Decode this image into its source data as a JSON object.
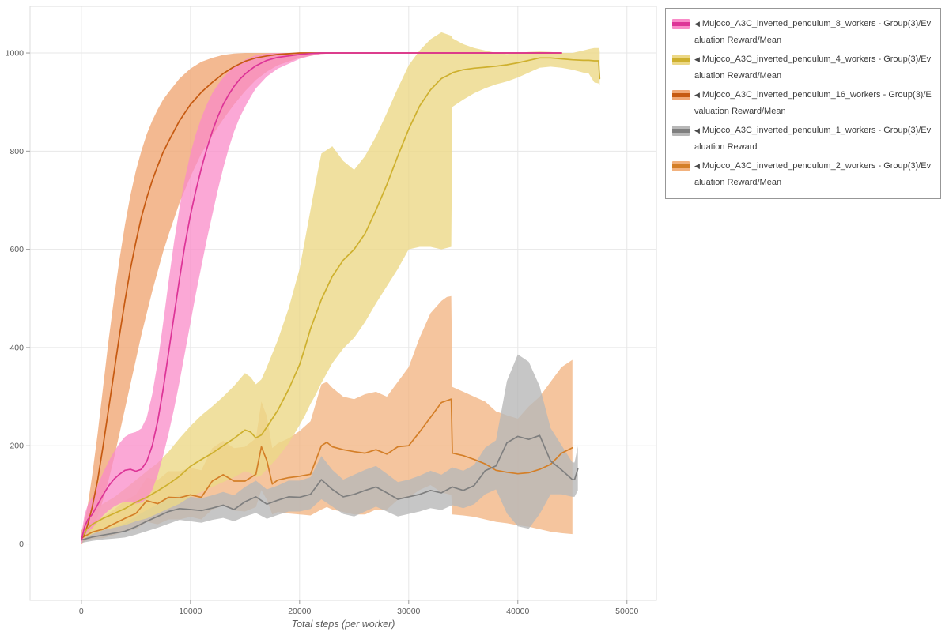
{
  "chart_data": {
    "type": "line",
    "title": "",
    "xlabel": "Total steps (per worker)",
    "ylabel": "",
    "xlim": [
      -4700,
      52700
    ],
    "ylim": [
      -115,
      1095
    ],
    "x_ticks": [
      0,
      10000,
      20000,
      30000,
      40000,
      50000
    ],
    "y_ticks": [
      0,
      200,
      400,
      600,
      800,
      1000
    ],
    "grid": true,
    "legend_position": "top-right",
    "legend_marker": "◀",
    "grid_color": "#e7e7e7",
    "frame_color": "#dcdcdc",
    "tick_color": "#9b9b9b",
    "label_color": "#5c5c5c",
    "series": [
      {
        "label": "Mujoco_A3C_inverted_pendulum_8_workers - Group(3)/Evaluation Reward/Mean",
        "color": "#dd3497",
        "band_color": "#f98bc8",
        "band_opacity": 0.75,
        "z": 5,
        "x": [
          0,
          300,
          600,
          1000,
          1500,
          2000,
          2500,
          3000,
          3500,
          4000,
          4500,
          5000,
          5500,
          6000,
          6500,
          7000,
          7500,
          8000,
          8500,
          9000,
          9500,
          10000,
          10500,
          11000,
          11500,
          12000,
          12500,
          13000,
          13500,
          14000,
          14500,
          15000,
          15500,
          16000,
          17000,
          18000,
          19000,
          20000,
          21000,
          22000,
          24000,
          26000,
          28000,
          30000,
          32000,
          34000,
          36000,
          38000,
          40000,
          42000,
          44000
        ],
        "mean": [
          8,
          35,
          50,
          60,
          80,
          100,
          118,
          132,
          142,
          150,
          152,
          148,
          152,
          168,
          200,
          250,
          315,
          390,
          465,
          540,
          610,
          670,
          720,
          765,
          805,
          840,
          870,
          895,
          915,
          932,
          946,
          957,
          966,
          974,
          985,
          991,
          994,
          997,
          999,
          1000,
          1000,
          1000,
          1000,
          1000,
          1000,
          1000,
          1000,
          1000,
          1000,
          1000,
          1000
        ],
        "lo": [
          0,
          15,
          25,
          32,
          45,
          58,
          68,
          76,
          82,
          86,
          86,
          82,
          84,
          92,
          110,
          140,
          180,
          225,
          275,
          330,
          390,
          450,
          510,
          565,
          620,
          670,
          720,
          765,
          805,
          840,
          868,
          890,
          910,
          928,
          952,
          968,
          978,
          988,
          994,
          998,
          1000,
          1000,
          1000,
          1000,
          1000,
          1000,
          1000,
          1000,
          1000,
          1000,
          1000
        ],
        "hi": [
          20,
          60,
          80,
          95,
          120,
          145,
          168,
          188,
          205,
          218,
          225,
          228,
          235,
          258,
          305,
          370,
          450,
          535,
          615,
          685,
          745,
          795,
          835,
          868,
          895,
          918,
          935,
          950,
          962,
          972,
          980,
          986,
          991,
          995,
          999,
          1000,
          1000,
          1000,
          1000,
          1000,
          1000,
          1000,
          1000,
          1000,
          1000,
          1000,
          1000,
          1000,
          1000,
          1000,
          1000
        ]
      },
      {
        "label": "Mujoco_A3C_inverted_pendulum_4_workers - Group(3)/Evaluation Reward/Mean",
        "color": "#ceb02e",
        "band_color": "#ecd887",
        "band_opacity": 0.8,
        "z": 4,
        "x": [
          0,
          500,
          1000,
          2000,
          3000,
          4000,
          5000,
          6000,
          7000,
          8000,
          9000,
          10000,
          11000,
          12000,
          13000,
          14000,
          15000,
          15500,
          16000,
          16500,
          17000,
          18000,
          19000,
          20000,
          20500,
          21000,
          21500,
          22000,
          23000,
          24000,
          25000,
          26000,
          27000,
          28000,
          29000,
          30000,
          31000,
          32000,
          33000,
          33900,
          34000,
          35000,
          36000,
          37000,
          38000,
          39000,
          40000,
          41000,
          42000,
          43000,
          44000,
          45000,
          46000,
          46500,
          47000,
          47400,
          47500
        ],
        "mean": [
          12,
          30,
          40,
          52,
          62,
          72,
          85,
          95,
          108,
          122,
          138,
          158,
          172,
          185,
          200,
          215,
          232,
          228,
          216,
          222,
          238,
          272,
          315,
          365,
          400,
          438,
          468,
          498,
          545,
          578,
          600,
          632,
          680,
          732,
          790,
          845,
          892,
          925,
          948,
          958,
          960,
          966,
          969,
          971,
          973,
          976,
          980,
          985,
          990,
          990,
          988,
          986,
          985,
          985,
          984,
          984,
          948
        ],
        "lo": [
          4,
          14,
          20,
          28,
          33,
          38,
          46,
          52,
          62,
          72,
          82,
          96,
          106,
          116,
          126,
          136,
          148,
          144,
          136,
          140,
          152,
          176,
          205,
          242,
          262,
          285,
          305,
          328,
          368,
          398,
          420,
          452,
          490,
          525,
          560,
          600,
          605,
          605,
          600,
          605,
          890,
          905,
          918,
          928,
          936,
          942,
          950,
          960,
          970,
          972,
          970,
          966,
          960,
          958,
          940,
          938,
          935
        ],
        "hi": [
          25,
          50,
          65,
          82,
          95,
          112,
          130,
          148,
          165,
          188,
          215,
          240,
          262,
          280,
          300,
          322,
          348,
          340,
          325,
          335,
          360,
          415,
          480,
          560,
          620,
          680,
          740,
          795,
          810,
          780,
          762,
          790,
          830,
          878,
          928,
          975,
          1005,
          1028,
          1042,
          1035,
          1030,
          1018,
          1010,
          1005,
          1000,
          998,
          1000,
          1002,
          1003,
          1002,
          1000,
          1000,
          1005,
          1008,
          1010,
          1010,
          1005
        ]
      },
      {
        "label": "Mujoco_A3C_inverted_pendulum_16_workers - Group(3)/Evaluation Reward/Mean",
        "color": "#c65a11",
        "band_color": "#f0a875",
        "band_opacity": 0.8,
        "z": 2,
        "x": [
          0,
          300,
          600,
          1000,
          1500,
          2000,
          2500,
          3000,
          3500,
          4000,
          4500,
          5000,
          5500,
          6000,
          6500,
          7000,
          7500,
          8000,
          9000,
          10000,
          11000,
          12000,
          13000,
          14000,
          15000,
          16000,
          17000,
          18000,
          20000,
          22000,
          24000,
          26000,
          28000,
          30000,
          32000,
          34000,
          36000,
          38000,
          40000,
          42000,
          44000
        ],
        "mean": [
          10,
          20,
          40,
          75,
          130,
          200,
          275,
          350,
          425,
          495,
          560,
          615,
          665,
          705,
          740,
          770,
          798,
          820,
          862,
          895,
          920,
          940,
          958,
          972,
          983,
          990,
          994,
          997,
          1000,
          1000,
          1000,
          1000,
          1000,
          1000,
          1000,
          1000,
          1000,
          1000,
          1000,
          1000,
          1000
        ],
        "lo": [
          0,
          5,
          15,
          30,
          55,
          90,
          130,
          175,
          225,
          275,
          325,
          375,
          425,
          470,
          515,
          555,
          595,
          630,
          695,
          748,
          795,
          832,
          865,
          895,
          922,
          945,
          962,
          975,
          990,
          998,
          1000,
          1000,
          1000,
          1000,
          1000,
          1000,
          1000,
          1000,
          1000,
          1000,
          1000
        ],
        "hi": [
          25,
          45,
          80,
          140,
          225,
          320,
          415,
          500,
          580,
          650,
          710,
          760,
          800,
          835,
          862,
          885,
          905,
          920,
          948,
          968,
          982,
          990,
          996,
          999,
          1000,
          1000,
          1000,
          1000,
          1000,
          1000,
          1000,
          1000,
          1000,
          1000,
          1000,
          1000,
          1000,
          1000,
          1000,
          1000,
          1000
        ]
      },
      {
        "label": "Mujoco_A3C_inverted_pendulum_1_workers - Group(3)/Evaluation Reward",
        "color": "#7f7f7f",
        "band_color": "#b8b8b8",
        "band_opacity": 0.8,
        "z": 3,
        "x": [
          0,
          1000,
          2000,
          3000,
          4000,
          5000,
          6000,
          7000,
          8000,
          9000,
          10000,
          11000,
          12000,
          13000,
          14000,
          15000,
          16000,
          17000,
          18000,
          19000,
          20000,
          21000,
          22000,
          23000,
          24000,
          25000,
          26000,
          27000,
          28000,
          29000,
          30000,
          31000,
          32000,
          33000,
          34000,
          35000,
          36000,
          37000,
          38000,
          39000,
          40000,
          41000,
          42000,
          43000,
          44000,
          45000,
          45200,
          45500
        ],
        "mean": [
          8,
          14,
          18,
          22,
          26,
          35,
          46,
          56,
          66,
          72,
          70,
          68,
          73,
          79,
          70,
          86,
          96,
          81,
          89,
          96,
          95,
          101,
          131,
          111,
          96,
          101,
          109,
          116,
          104,
          91,
          96,
          101,
          109,
          104,
          116,
          109,
          119,
          149,
          159,
          206,
          219,
          213,
          221,
          169,
          151,
          131,
          131,
          153
        ],
        "lo": [
          2,
          6,
          9,
          11,
          13,
          19,
          26,
          33,
          41,
          49,
          46,
          43,
          49,
          53,
          46,
          56,
          63,
          51,
          59,
          66,
          66,
          71,
          91,
          76,
          61,
          56,
          66,
          76,
          66,
          56,
          61,
          66,
          73,
          69,
          79,
          73,
          81,
          101,
          111,
          62,
          36,
          31,
          61,
          101,
          101,
          96,
          96,
          109
        ],
        "hi": [
          18,
          26,
          30,
          35,
          42,
          56,
          69,
          81,
          93,
          99,
          96,
          93,
          99,
          106,
          99,
          116,
          129,
          111,
          119,
          129,
          129,
          136,
          179,
          151,
          131,
          141,
          151,
          159,
          143,
          126,
          131,
          139,
          149,
          141,
          156,
          149,
          161,
          196,
          211,
          332,
          386,
          371,
          321,
          236,
          201,
          166,
          166,
          199
        ]
      },
      {
        "label": "Mujoco_A3C_inverted_pendulum_2_workers - Group(3)/Evaluation Reward/Mean",
        "color": "#d47f28",
        "band_color": "#f2b27e",
        "band_opacity": 0.75,
        "z": 1,
        "x": [
          0,
          1000,
          2000,
          3000,
          4000,
          5000,
          6000,
          7000,
          8000,
          9000,
          10000,
          11000,
          12000,
          13000,
          14000,
          15000,
          16000,
          16500,
          17000,
          17500,
          18000,
          19000,
          20000,
          21000,
          22000,
          22500,
          23000,
          24000,
          25000,
          26000,
          27000,
          28000,
          29000,
          30000,
          31000,
          32000,
          33000,
          33500,
          33900,
          34000,
          35000,
          36000,
          37000,
          38000,
          39000,
          40000,
          41000,
          42000,
          43000,
          44000,
          45000
        ],
        "mean": [
          12,
          24,
          30,
          41,
          52,
          62,
          88,
          82,
          95,
          94,
          100,
          95,
          128,
          141,
          128,
          128,
          142,
          198,
          170,
          122,
          130,
          135,
          138,
          142,
          200,
          207,
          198,
          192,
          188,
          185,
          192,
          183,
          198,
          200,
          228,
          258,
          288,
          292,
          295,
          185,
          180,
          172,
          163,
          150,
          146,
          143,
          145,
          152,
          162,
          185,
          196
        ],
        "lo": [
          4,
          10,
          12,
          18,
          25,
          30,
          45,
          40,
          50,
          50,
          55,
          50,
          70,
          78,
          68,
          66,
          75,
          110,
          90,
          60,
          65,
          62,
          60,
          58,
          70,
          75,
          70,
          65,
          60,
          60,
          70,
          70,
          90,
          95,
          110,
          120,
          105,
          102,
          100,
          60,
          58,
          55,
          50,
          45,
          42,
          38,
          35,
          30,
          25,
          22,
          20
        ],
        "hi": [
          28,
          45,
          55,
          70,
          88,
          100,
          135,
          130,
          148,
          148,
          155,
          150,
          195,
          210,
          195,
          198,
          215,
          290,
          260,
          195,
          205,
          215,
          230,
          250,
          325,
          330,
          318,
          300,
          295,
          305,
          310,
          300,
          330,
          360,
          420,
          470,
          495,
          503,
          505,
          320,
          310,
          300,
          290,
          270,
          262,
          255,
          280,
          300,
          330,
          360,
          375
        ]
      }
    ]
  }
}
